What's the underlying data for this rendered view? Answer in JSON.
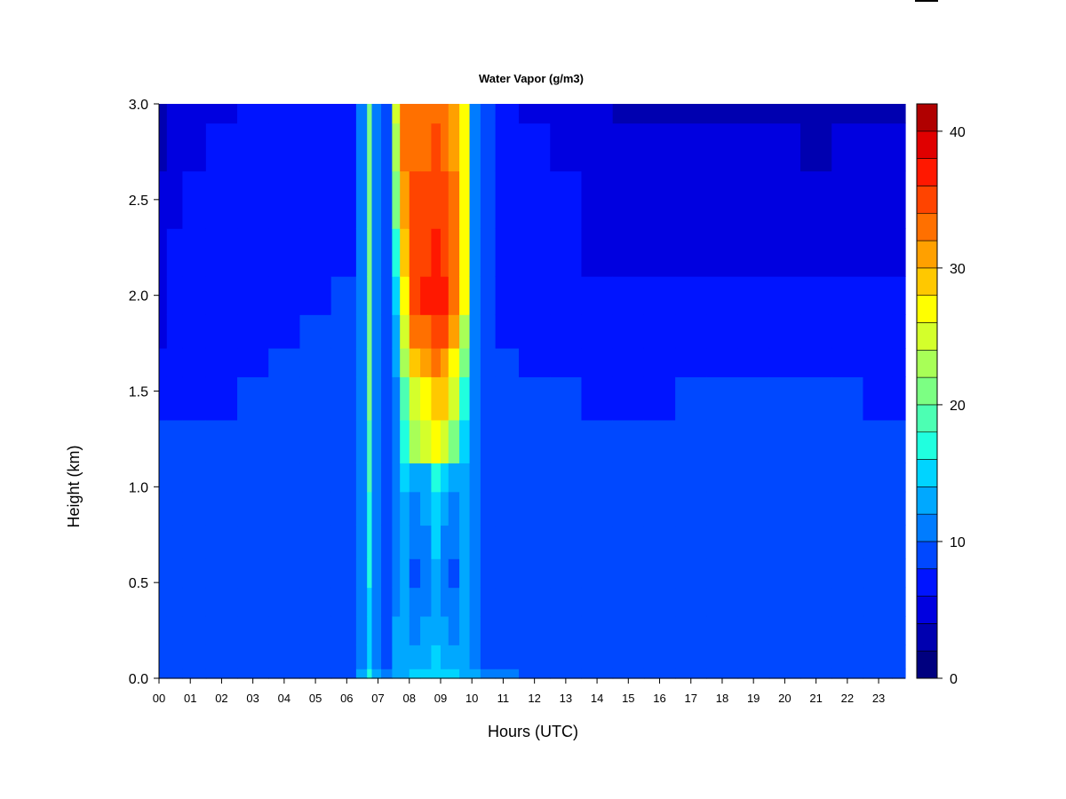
{
  "chart_data": {
    "type": "heatmap",
    "title": "Water Vapor (g/m3)",
    "xlabel": "Hours (UTC)",
    "ylabel": "Height (km)",
    "x_ticks": [
      "00",
      "01",
      "02",
      "03",
      "04",
      "05",
      "06",
      "07",
      "08",
      "09",
      "10",
      "11",
      "12",
      "13",
      "14",
      "15",
      "16",
      "17",
      "18",
      "19",
      "20",
      "21",
      "22",
      "23"
    ],
    "y_ticks": [
      "0.0",
      "0.5",
      "1.0",
      "1.5",
      "2.0",
      "2.5",
      "3.0"
    ],
    "xlim": [
      0,
      23.85
    ],
    "ylim": [
      0,
      3.0
    ],
    "colorbar": {
      "range": [
        0,
        42
      ],
      "step": 2,
      "ticks": [
        "0",
        "10",
        "20",
        "30",
        "40"
      ],
      "colors": [
        "#00007f",
        "#0000b0",
        "#0000e0",
        "#0014ff",
        "#0048ff",
        "#007cff",
        "#00a8ff",
        "#00d4ff",
        "#20ffdf",
        "#4cffb3",
        "#7cff83",
        "#a8ff57",
        "#d4ff2b",
        "#ffff00",
        "#ffc800",
        "#ffa000",
        "#ff7000",
        "#ff4400",
        "#ff1800",
        "#e00000",
        "#b00000"
      ]
    },
    "x_hours": [
      0,
      0.5,
      1,
      2,
      3,
      4,
      5,
      6,
      6.6,
      6.7,
      6.9,
      7.3,
      7.6,
      7.8,
      8.2,
      8.5,
      8.9,
      9.1,
      9.4,
      9.8,
      10.05,
      10.5,
      11,
      12,
      13,
      14,
      15,
      16,
      17,
      18,
      19,
      20,
      21,
      22,
      23,
      23.85
    ],
    "heights_km": [
      0,
      0.1,
      0.25,
      0.4,
      0.55,
      0.7,
      0.9,
      1.05,
      1.2,
      1.5,
      1.65,
      1.8,
      2.0,
      2.2,
      2.5,
      2.8,
      3.0
    ],
    "values_g_m3": [
      [
        9,
        9,
        9,
        9,
        9,
        9,
        8,
        8,
        8,
        6,
        6,
        5,
        5,
        4,
        4,
        3,
        3
      ],
      [
        9,
        8,
        8,
        8,
        8,
        8,
        8,
        8,
        8,
        7,
        7,
        7,
        6,
        6,
        5,
        4,
        4
      ],
      [
        9,
        8,
        8,
        8,
        8,
        8,
        8,
        8,
        8,
        7,
        7,
        7,
        7,
        6,
        6,
        5,
        5
      ],
      [
        9,
        8,
        8,
        8,
        8,
        8,
        8,
        8,
        8,
        7,
        7,
        7,
        7,
        7,
        6,
        6,
        5
      ],
      [
        9,
        8,
        8,
        8,
        8,
        8,
        8,
        8,
        8,
        8,
        7,
        7,
        7,
        7,
        7,
        6,
        6
      ],
      [
        9,
        8,
        8,
        8,
        8,
        8,
        8,
        8,
        8,
        8,
        8,
        7,
        7,
        7,
        7,
        6,
        6
      ],
      [
        9,
        8,
        8,
        8,
        9,
        9,
        9,
        9,
        9,
        8,
        8,
        8,
        7,
        7,
        7,
        7,
        6
      ],
      [
        9,
        8,
        8,
        8,
        9,
        9,
        9,
        9,
        9,
        9,
        8,
        8,
        8,
        7,
        7,
        7,
        7
      ],
      [
        12,
        11,
        11,
        11,
        11,
        11,
        11,
        11,
        11,
        11,
        11,
        10,
        10,
        10,
        10,
        10,
        10
      ],
      [
        16,
        15,
        15,
        15,
        16,
        16,
        17,
        18,
        19,
        20,
        21,
        21,
        21,
        21,
        21,
        21,
        21
      ],
      [
        12,
        11,
        11,
        11,
        11,
        11,
        11,
        11,
        11,
        11,
        11,
        11,
        10,
        10,
        10,
        10,
        10
      ],
      [
        10,
        9,
        9,
        9,
        9,
        9,
        9,
        9,
        9,
        9,
        9,
        9,
        9,
        9,
        9,
        9,
        9
      ],
      [
        12,
        12,
        12,
        11,
        11,
        11,
        11,
        11,
        11,
        11,
        12,
        13,
        15,
        17,
        20,
        22,
        24
      ],
      [
        13,
        12,
        12,
        12,
        12,
        12,
        13,
        14,
        17,
        19,
        22,
        25,
        27,
        29,
        31,
        32,
        32
      ],
      [
        14,
        12,
        11,
        10,
        9,
        10,
        11,
        12,
        22,
        25,
        28,
        32,
        35,
        35,
        34,
        33,
        33
      ],
      [
        14,
        13,
        12,
        11,
        11,
        11,
        12,
        13,
        24,
        27,
        30,
        33,
        36,
        35,
        34,
        33,
        32
      ],
      [
        15,
        14,
        13,
        13,
        13,
        14,
        15,
        16,
        26,
        29,
        32,
        35,
        37,
        36,
        35,
        34,
        33
      ],
      [
        14,
        13,
        12,
        11,
        11,
        11,
        12,
        14,
        25,
        28,
        31,
        34,
        36,
        35,
        34,
        33,
        32
      ],
      [
        14,
        12,
        11,
        10,
        9,
        10,
        11,
        12,
        21,
        24,
        27,
        30,
        33,
        33,
        32,
        31,
        30
      ],
      [
        13,
        12,
        12,
        12,
        12,
        12,
        12,
        13,
        15,
        17,
        20,
        23,
        26,
        27,
        27,
        27,
        27
      ],
      [
        12,
        11,
        11,
        11,
        11,
        11,
        11,
        11,
        11,
        11,
        11,
        11,
        11,
        11,
        11,
        11,
        11
      ],
      [
        10,
        9,
        9,
        9,
        9,
        9,
        9,
        9,
        9,
        8,
        8,
        8,
        8,
        8,
        8,
        8,
        8
      ],
      [
        10,
        9,
        9,
        8,
        8,
        8,
        8,
        8,
        8,
        8,
        8,
        7,
        7,
        7,
        7,
        6,
        6
      ],
      [
        9,
        9,
        9,
        8,
        8,
        8,
        8,
        8,
        8,
        8,
        7,
        7,
        7,
        7,
        6,
        6,
        5
      ],
      [
        9,
        8,
        9,
        8,
        8,
        8,
        8,
        8,
        8,
        8,
        7,
        7,
        7,
        6,
        6,
        5,
        5
      ],
      [
        9,
        8,
        9,
        8,
        8,
        8,
        8,
        8,
        8,
        7,
        7,
        6,
        6,
        5,
        5,
        4,
        4
      ],
      [
        9,
        8,
        8,
        8,
        8,
        8,
        8,
        8,
        8,
        7,
        7,
        6,
        6,
        5,
        5,
        4,
        3
      ],
      [
        9,
        8,
        8,
        8,
        8,
        8,
        8,
        8,
        8,
        7,
        7,
        6,
        6,
        5,
        4,
        4,
        3
      ],
      [
        9,
        8,
        8,
        8,
        8,
        8,
        8,
        8,
        8,
        8,
        7,
        6,
        6,
        5,
        4,
        4,
        3
      ],
      [
        9,
        8,
        8,
        8,
        8,
        8,
        8,
        8,
        8,
        8,
        7,
        6,
        6,
        5,
        4,
        4,
        3
      ],
      [
        9,
        8,
        8,
        8,
        8,
        8,
        8,
        8,
        8,
        8,
        7,
        6,
        6,
        5,
        4,
        4,
        3
      ],
      [
        9,
        8,
        8,
        8,
        8,
        8,
        8,
        8,
        8,
        8,
        7,
        6,
        6,
        5,
        4,
        4,
        3
      ],
      [
        9,
        8,
        8,
        8,
        8,
        8,
        8,
        8,
        8,
        8,
        7,
        6,
        6,
        5,
        4,
        3,
        3
      ],
      [
        9,
        8,
        8,
        8,
        8,
        8,
        8,
        8,
        8,
        8,
        7,
        6,
        6,
        5,
        5,
        4,
        3
      ],
      [
        9,
        9,
        8,
        8,
        8,
        8,
        8,
        8,
        8,
        7,
        7,
        6,
        6,
        5,
        5,
        4,
        3
      ],
      [
        9,
        9,
        8,
        8,
        8,
        8,
        8,
        8,
        8,
        7,
        7,
        6,
        6,
        5,
        5,
        4,
        3
      ]
    ]
  }
}
